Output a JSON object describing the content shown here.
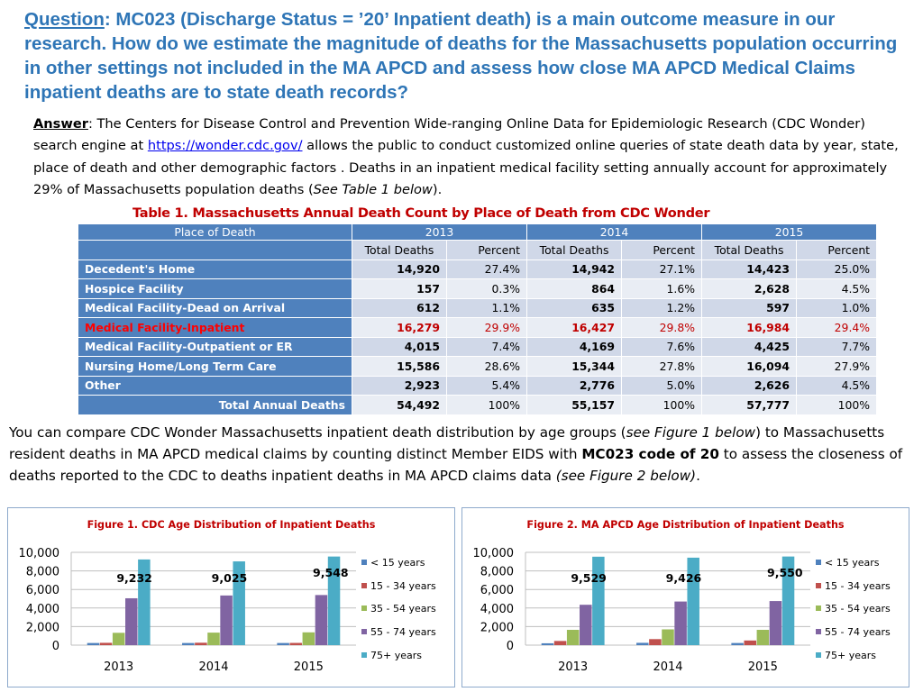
{
  "question": {
    "label": "Question",
    "text": ":  MC023 (Discharge Status = ’20’ Inpatient death) is a main outcome measure in our research.   How do we estimate the magnitude of deaths for the Massachusetts population occurring in other settings not included in the MA APCD and assess how close MA APCD Medical Claims inpatient deaths are to state death records?"
  },
  "answer": {
    "label": "Answer",
    "text1": ": The Centers for Disease Control and Prevention Wide-ranging Online Data for Epidemiologic Research (CDC Wonder) search engine at ",
    "link": "https://wonder.cdc.gov/",
    "text2": "  allows  the public to conduct customized online queries of state death data by year, state, place of death and other demographic factors . Deaths in an inpatient medical facility setting annually account for approximately 29% of Massachusetts  population deaths (",
    "italic": "See Table 1 below",
    "text3": ")."
  },
  "table": {
    "title": "Table 1. Massachusetts Annual Death Count by Place of Death from CDC Wonder",
    "header_place": "Place of Death",
    "years": [
      "2013",
      "2014",
      "2015"
    ],
    "col_total": "Total Deaths",
    "col_percent": "Percent",
    "rows": [
      {
        "label": "Decedent's Home",
        "v": [
          "14,920",
          "27.4%",
          "14,942",
          "27.1%",
          "14,423",
          "25.0%"
        ]
      },
      {
        "label": "Hospice  Facility",
        "v": [
          "157",
          "0.3%",
          "864",
          "1.6%",
          "2,628",
          "4.5%"
        ]
      },
      {
        "label": "Medical Facility-Dead on Arrival",
        "v": [
          "612",
          "1.1%",
          "635",
          "1.2%",
          "597",
          "1.0%"
        ]
      },
      {
        "label": "Medical Facility-Inpatient",
        "v": [
          "16,279",
          "29.9%",
          "16,427",
          "29.8%",
          "16,984",
          "29.4%"
        ]
      },
      {
        "label": "Medical Facility-Outpatient or ER",
        "v": [
          "4,015",
          "7.4%",
          "4,169",
          "7.6%",
          "4,425",
          "7.7%"
        ]
      },
      {
        "label": "Nursing Home/Long Term Care",
        "v": [
          "15,586",
          "28.6%",
          "15,344",
          "27.8%",
          "16,094",
          "27.9%"
        ]
      },
      {
        "label": "Other",
        "v": [
          "2,923",
          "5.4%",
          "2,776",
          "5.0%",
          "2,626",
          "4.5%"
        ]
      },
      {
        "label": "Total Annual Deaths",
        "v": [
          "54,492",
          "100%",
          "55,157",
          "100%",
          "57,777",
          "100%"
        ]
      }
    ],
    "highlight_color": "#c00000"
  },
  "compare": {
    "t1": "You can compare CDC Wonder Massachusetts inpatient death distribution by age groups (",
    "i1": "see Figure 1 below",
    "t2": ") to Massachusetts resident deaths in MA APCD medical claims by counting distinct Member EIDS with ",
    "b1": "MC023 code of 20",
    "t3": " to assess the closeness of deaths reported to the CDC to deaths inpatient deaths in MA APCD claims data ",
    "i2": "(see Figure 2 below)",
    "t4": "."
  },
  "chart_data": [
    {
      "type": "bar",
      "title": "Figure 1. CDC Age Distribution of Inpatient Deaths",
      "categories": [
        "2013",
        "2014",
        "2015"
      ],
      "ylim": [
        0,
        10000
      ],
      "yticks": [
        "0",
        "2,000",
        "4,000",
        "6,000",
        "8,000",
        "10,000"
      ],
      "grid": true,
      "legend": "right",
      "series": [
        {
          "name": "< 15 years",
          "color": "#4f81bd",
          "values": [
            230,
            230,
            230
          ]
        },
        {
          "name": "15 - 34 years",
          "color": "#c0504d",
          "values": [
            250,
            260,
            240
          ]
        },
        {
          "name": "35 - 54 years",
          "color": "#9bbb59",
          "values": [
            1330,
            1350,
            1380
          ]
        },
        {
          "name": "55 - 74 years",
          "color": "#8064a2",
          "values": [
            5050,
            5350,
            5400
          ]
        },
        {
          "name": "75+ years",
          "color": "#4bacc6",
          "values": [
            9232,
            9025,
            9548
          ]
        }
      ],
      "data_labels": [
        "9,232",
        "9,025",
        "9,548"
      ]
    },
    {
      "type": "bar",
      "title": "Figure 2. MA APCD Age Distribution of Inpatient Deaths",
      "categories": [
        "2013",
        "2014",
        "2015"
      ],
      "ylim": [
        0,
        10000
      ],
      "yticks": [
        "0",
        "2,000",
        "4,000",
        "6,000",
        "8,000",
        "10,000"
      ],
      "grid": true,
      "legend": "right",
      "series": [
        {
          "name": "< 15 years",
          "color": "#4f81bd",
          "values": [
            200,
            250,
            230
          ]
        },
        {
          "name": "15 - 34 years",
          "color": "#c0504d",
          "values": [
            450,
            650,
            500
          ]
        },
        {
          "name": "35 - 54 years",
          "color": "#9bbb59",
          "values": [
            1650,
            1700,
            1650
          ]
        },
        {
          "name": "55 - 74 years",
          "color": "#8064a2",
          "values": [
            4350,
            4700,
            4750
          ]
        },
        {
          "name": "75+ years",
          "color": "#4bacc6",
          "values": [
            9529,
            9426,
            9550
          ]
        }
      ],
      "data_labels": [
        "9,529",
        "9,426",
        "9,550"
      ]
    }
  ]
}
